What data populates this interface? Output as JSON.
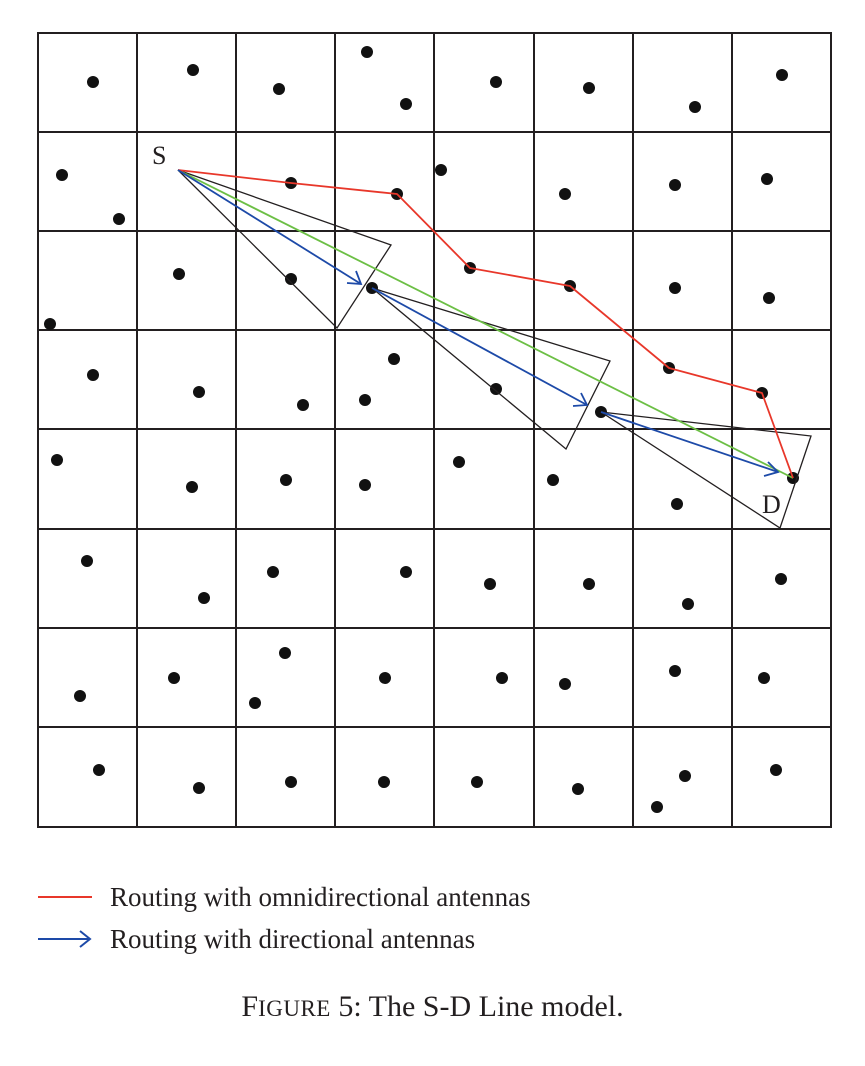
{
  "diagram": {
    "source_label": "S",
    "destination_label": "D",
    "colors": {
      "omni": "#e8372a",
      "directional": "#1d4aa8",
      "sd_line": "#6cbf45",
      "grid": "#231f20",
      "node": "#111111"
    },
    "icons": {
      "omni_legend": "red-line-icon",
      "directional_legend": "blue-arrow-icon"
    }
  },
  "legend": {
    "omni": "Routing with omnidirectional antennas",
    "directional": "Routing with directional antennas"
  },
  "caption": {
    "label_initial": "F",
    "label_rest": "IGURE",
    "number": "5:",
    "text": "The S-D Line model."
  }
}
